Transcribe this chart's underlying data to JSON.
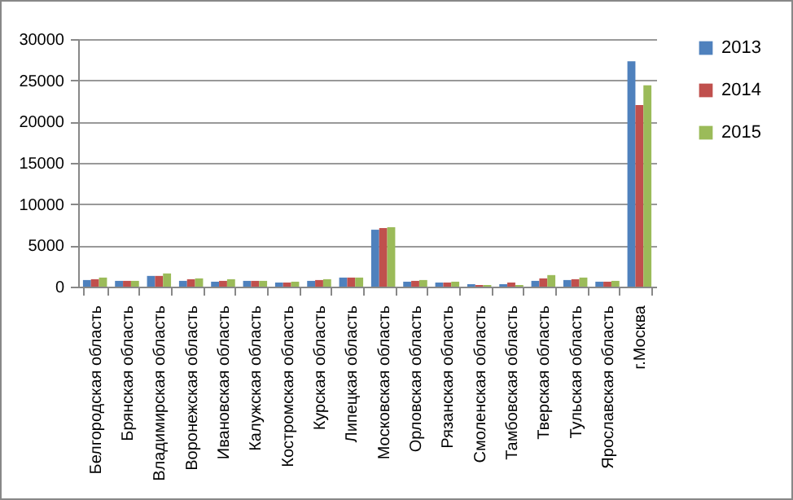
{
  "chart_data": {
    "type": "bar",
    "categories": [
      "Белгородская область",
      "Брянская область",
      "Владимирская область",
      "Воронежская область",
      "Ивановская область",
      "Калужская область",
      "Костромская область",
      "Курская область",
      "Липецкая область",
      "Московская область",
      "Орловская область",
      "Рязанская область",
      "Смоленская область",
      "Тамбовская область",
      "Тверская область",
      "Тульская область",
      "Ярославская область",
      "г.Москва"
    ],
    "series": [
      {
        "name": "2013",
        "color": "#4f81bd",
        "values": [
          800,
          700,
          1300,
          700,
          600,
          700,
          500,
          700,
          1100,
          6900,
          600,
          500,
          300,
          300,
          700,
          800,
          600,
          27300
        ]
      },
      {
        "name": "2014",
        "color": "#c0504d",
        "values": [
          900,
          700,
          1300,
          900,
          700,
          700,
          500,
          800,
          1100,
          7100,
          700,
          500,
          200,
          500,
          1000,
          900,
          600,
          22000
        ]
      },
      {
        "name": "2015",
        "color": "#9bbb59",
        "values": [
          1100,
          700,
          1600,
          1000,
          900,
          700,
          600,
          900,
          1100,
          7200,
          800,
          600,
          200,
          200,
          1400,
          1100,
          700,
          24400
        ]
      }
    ],
    "ylim": [
      0,
      30000
    ],
    "yticks": [
      0,
      5000,
      10000,
      15000,
      20000,
      25000,
      30000
    ],
    "grid": "y",
    "legend": "right"
  }
}
